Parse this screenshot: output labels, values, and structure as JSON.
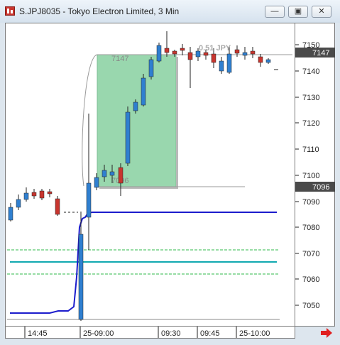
{
  "window": {
    "title": "S.JPJ8035 - Tokyo Electron Limited, 3 Min",
    "minimize_glyph": "—",
    "restore_glyph": "▣",
    "close_glyph": "✕"
  },
  "price_axis": {
    "ticks": [
      "7150",
      "7140",
      "7130",
      "7120",
      "7110",
      "7100",
      "7090",
      "7080",
      "7070",
      "7060",
      "7050"
    ],
    "current_price_badge": "7147",
    "lower_badge": "7096"
  },
  "time_axis": {
    "labels": [
      "14:45",
      "25-09:00",
      "09:30",
      "09:45",
      "25-10:00"
    ]
  },
  "box": {
    "top_label": "7147",
    "bottom_label": "7096"
  },
  "overlay_text": {
    "pnl": "0.51 JPY"
  },
  "colors": {
    "up_candle": "#2f7fd0",
    "down_candle": "#c8352e",
    "box_fill": "#8fd3a6",
    "ma_line": "#1c1ccc",
    "teal_line": "#11a9b0",
    "green_dashed": "#2fb84a",
    "badge_bg": "#4a4a4a",
    "scroll_arrow": "#e02020"
  },
  "icons": {
    "app": "chart-app-icon",
    "scroll": "right-arrow-icon"
  }
}
